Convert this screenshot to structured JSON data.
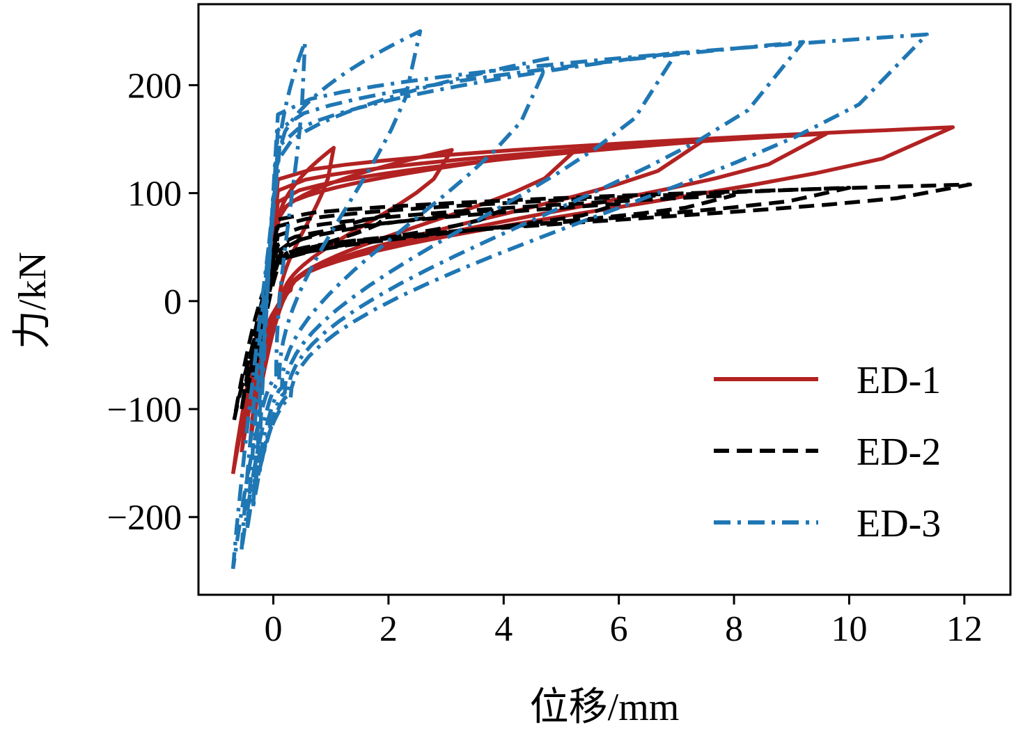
{
  "chart_data": {
    "type": "line",
    "xlabel": "位移/mm",
    "ylabel": "力/kN",
    "xlim": [
      -1.3,
      12.8
    ],
    "ylim": [
      -272,
      275
    ],
    "xticks": [
      0,
      2,
      4,
      6,
      8,
      10,
      12
    ],
    "yticks": [
      -200,
      -100,
      0,
      100,
      200
    ],
    "xtick_labels": [
      "0",
      "2",
      "4",
      "6",
      "8",
      "10",
      "12"
    ],
    "ytick_labels": [
      "−200",
      "−100",
      "0",
      "100",
      "200"
    ],
    "grid": false,
    "legend_position": "lower-right",
    "series": [
      {
        "name": "ED-1",
        "color": "#b22222",
        "dash": "solid",
        "loops": [
          {
            "peak": [
              -0.7,
              -160
            ],
            "top": [
              1.05,
              142
            ],
            "lower_start": 0.1,
            "lower_y": -5
          },
          {
            "peak": [
              -0.55,
              -140
            ],
            "top": [
              3.1,
              140
            ],
            "lower_start": 0.15,
            "lower_y": 0
          },
          {
            "peak": [
              -0.4,
              -130
            ],
            "top": [
              5.25,
              140
            ],
            "lower_start": 0.2,
            "lower_y": 3
          },
          {
            "peak": [
              -0.35,
              -110
            ],
            "top": [
              7.45,
              148
            ],
            "lower_start": 0.2,
            "lower_y": 5
          },
          {
            "peak": [
              -0.3,
              -95
            ],
            "top": [
              9.6,
              155
            ],
            "lower_start": 0.25,
            "lower_y": 8
          },
          {
            "peak": [
              -0.25,
              -90
            ],
            "top": [
              11.8,
              161
            ],
            "lower_start": 0.3,
            "lower_y": 10
          }
        ]
      },
      {
        "name": "ED-2",
        "color": "#000000",
        "dash": "dashed",
        "loops": [
          {
            "peak": [
              -0.68,
              -110
            ],
            "top": [
              2.0,
              80
            ],
            "lower_start": 0.05,
            "lower_y": 30
          },
          {
            "peak": [
              -0.55,
              -100
            ],
            "top": [
              4.0,
              85
            ],
            "lower_start": 0.05,
            "lower_y": 32
          },
          {
            "peak": [
              -0.45,
              -85
            ],
            "top": [
              6.0,
              90
            ],
            "lower_start": 0.1,
            "lower_y": 35
          },
          {
            "peak": [
              -0.35,
              -70
            ],
            "top": [
              8.0,
              98
            ],
            "lower_start": 0.1,
            "lower_y": 38
          },
          {
            "peak": [
              -0.3,
              -60
            ],
            "top": [
              10.0,
              105
            ],
            "lower_start": 0.15,
            "lower_y": 40
          },
          {
            "peak": [
              -0.25,
              -50
            ],
            "top": [
              12.1,
              108
            ],
            "lower_start": 0.2,
            "lower_y": 42
          }
        ]
      },
      {
        "name": "ED-3",
        "color": "#1f77b4",
        "dash": "dashdot",
        "loops": [
          {
            "peak": [
              -0.7,
              -248
            ],
            "top": [
              0.55,
              240
            ],
            "lower_start": 0.05,
            "lower_y": -70
          },
          {
            "peak": [
              -0.55,
              -230
            ],
            "top": [
              2.55,
              250
            ],
            "lower_start": 0.1,
            "lower_y": -75
          },
          {
            "peak": [
              -0.45,
              -210
            ],
            "top": [
              4.8,
              225
            ],
            "lower_start": 0.15,
            "lower_y": -80
          },
          {
            "peak": [
              -0.35,
              -190
            ],
            "top": [
              7.0,
              230
            ],
            "lower_start": 0.2,
            "lower_y": -85
          },
          {
            "peak": [
              -0.3,
              -170
            ],
            "top": [
              9.2,
              240
            ],
            "lower_start": 0.25,
            "lower_y": -88
          },
          {
            "peak": [
              -0.25,
              -150
            ],
            "top": [
              11.35,
              247
            ],
            "lower_start": 0.3,
            "lower_y": -90
          }
        ]
      }
    ]
  }
}
